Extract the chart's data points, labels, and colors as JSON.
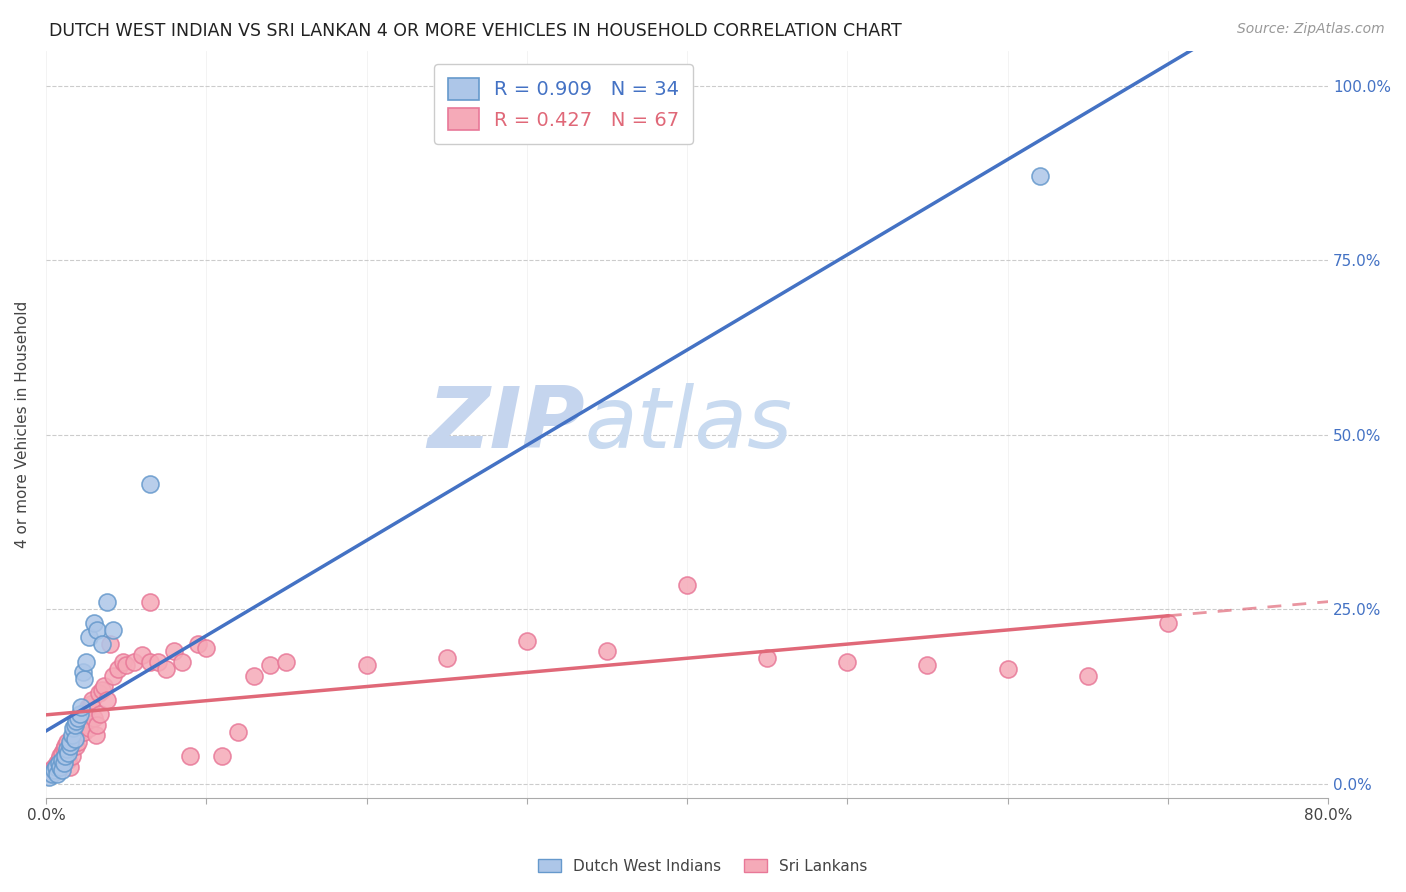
{
  "title": "DUTCH WEST INDIAN VS SRI LANKAN 4 OR MORE VEHICLES IN HOUSEHOLD CORRELATION CHART",
  "source": "Source: ZipAtlas.com",
  "ylabel": "4 or more Vehicles in Household",
  "ytick_labels": [
    "0.0%",
    "25.0%",
    "50.0%",
    "75.0%",
    "100.0%"
  ],
  "ytick_values": [
    0.0,
    0.25,
    0.5,
    0.75,
    1.0
  ],
  "legend_label1": "Dutch West Indians",
  "legend_label2": "Sri Lankans",
  "r1": "0.909",
  "n1": "34",
  "r2": "0.427",
  "n2": "67",
  "color_blue": "#adc6e8",
  "color_pink": "#f5aab8",
  "color_blue_dark": "#6699cc",
  "color_pink_dark": "#e87898",
  "color_blue_line": "#4472c4",
  "color_pink_line": "#e06878",
  "watermark_color": "#d0dff5",
  "background_color": "#ffffff",
  "xlim": [
    0.0,
    0.8
  ],
  "ylim": [
    -0.02,
    1.05
  ],
  "dutch_x": [
    0.002,
    0.004,
    0.005,
    0.006,
    0.007,
    0.008,
    0.009,
    0.01,
    0.01,
    0.011,
    0.012,
    0.013,
    0.014,
    0.015,
    0.015,
    0.016,
    0.017,
    0.018,
    0.018,
    0.019,
    0.02,
    0.021,
    0.022,
    0.023,
    0.024,
    0.025,
    0.027,
    0.03,
    0.032,
    0.035,
    0.038,
    0.042,
    0.065,
    0.62
  ],
  "dutch_y": [
    0.01,
    0.015,
    0.02,
    0.025,
    0.015,
    0.03,
    0.025,
    0.035,
    0.02,
    0.03,
    0.04,
    0.05,
    0.045,
    0.055,
    0.06,
    0.07,
    0.08,
    0.065,
    0.085,
    0.09,
    0.095,
    0.1,
    0.11,
    0.16,
    0.15,
    0.175,
    0.21,
    0.23,
    0.22,
    0.2,
    0.26,
    0.22,
    0.43,
    0.87
  ],
  "srilanka_x": [
    0.003,
    0.005,
    0.007,
    0.008,
    0.009,
    0.01,
    0.011,
    0.012,
    0.013,
    0.014,
    0.015,
    0.016,
    0.017,
    0.018,
    0.018,
    0.019,
    0.02,
    0.02,
    0.021,
    0.022,
    0.023,
    0.024,
    0.025,
    0.026,
    0.027,
    0.028,
    0.029,
    0.03,
    0.031,
    0.032,
    0.033,
    0.034,
    0.035,
    0.036,
    0.038,
    0.04,
    0.042,
    0.045,
    0.048,
    0.05,
    0.055,
    0.06,
    0.065,
    0.065,
    0.07,
    0.075,
    0.08,
    0.085,
    0.09,
    0.095,
    0.1,
    0.11,
    0.12,
    0.13,
    0.14,
    0.15,
    0.2,
    0.25,
    0.3,
    0.35,
    0.4,
    0.45,
    0.5,
    0.55,
    0.6,
    0.65,
    0.7
  ],
  "srilanka_y": [
    0.02,
    0.025,
    0.03,
    0.035,
    0.04,
    0.045,
    0.05,
    0.055,
    0.06,
    0.035,
    0.025,
    0.04,
    0.065,
    0.07,
    0.075,
    0.055,
    0.08,
    0.06,
    0.085,
    0.09,
    0.1,
    0.075,
    0.105,
    0.11,
    0.08,
    0.115,
    0.12,
    0.095,
    0.07,
    0.085,
    0.13,
    0.1,
    0.135,
    0.14,
    0.12,
    0.2,
    0.155,
    0.165,
    0.175,
    0.17,
    0.175,
    0.185,
    0.175,
    0.26,
    0.175,
    0.165,
    0.19,
    0.175,
    0.04,
    0.2,
    0.195,
    0.04,
    0.075,
    0.155,
    0.17,
    0.175,
    0.17,
    0.18,
    0.205,
    0.19,
    0.285,
    0.18,
    0.175,
    0.17,
    0.165,
    0.155,
    0.23
  ]
}
